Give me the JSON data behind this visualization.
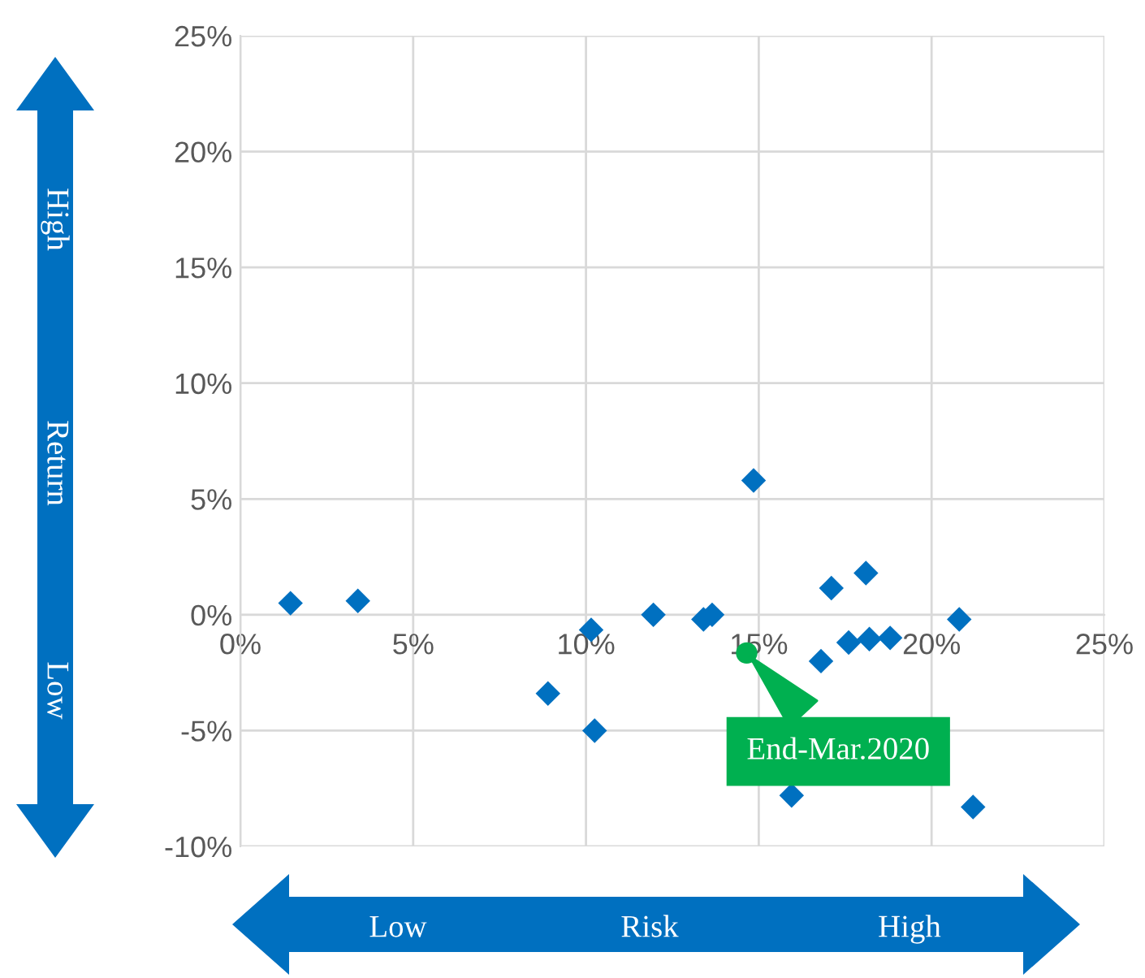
{
  "chart_data": {
    "type": "scatter",
    "xlabel": "Risk",
    "ylabel": "Return",
    "series": [
      {
        "color": "#0070c0",
        "marker": "diamond",
        "x": [
          1.45,
          3.4,
          10.15,
          8.9,
          10.25,
          11.95,
          13.4,
          13.65,
          14.85,
          16.8,
          17.1,
          18.1,
          17.6,
          18.2,
          18.8,
          20.8,
          15.95,
          21.2
        ],
        "values": [
          0.5,
          0.6,
          -0.65,
          -3.4,
          -5.0,
          0.0,
          -0.2,
          0.0,
          5.8,
          -2.0,
          1.15,
          1.8,
          -1.2,
          -1.05,
          -1.0,
          -0.2,
          -7.8,
          -8.3
        ]
      },
      {
        "color": "#00b050",
        "marker": "circle",
        "x": [
          14.65
        ],
        "values": [
          -1.65
        ]
      }
    ],
    "annotations": [
      {
        "text": "End-Mar.2020",
        "x": 14.65,
        "y": -1.65
      },
      "High",
      "Low",
      "Low",
      "High"
    ],
    "xlim": [
      0,
      25
    ],
    "ylim": [
      -10,
      25
    ],
    "xticks": [
      {
        "value": 0,
        "label": "0%"
      },
      {
        "value": 5,
        "label": "5%"
      },
      {
        "value": 10,
        "label": "10%"
      },
      {
        "value": 15,
        "label": "15%"
      },
      {
        "value": 20,
        "label": "20%"
      },
      {
        "value": 25,
        "label": "25%"
      }
    ],
    "yticks": [
      {
        "value": -10,
        "label": "-10%"
      },
      {
        "value": -5,
        "label": "-5%"
      },
      {
        "value": 0,
        "label": "0%"
      },
      {
        "value": 5,
        "label": "5%"
      },
      {
        "value": 10,
        "label": "10%"
      },
      {
        "value": 15,
        "label": "15%"
      },
      {
        "value": 20,
        "label": "20%"
      },
      {
        "value": 25,
        "label": "25%"
      }
    ],
    "grid": true,
    "legend": false
  }
}
